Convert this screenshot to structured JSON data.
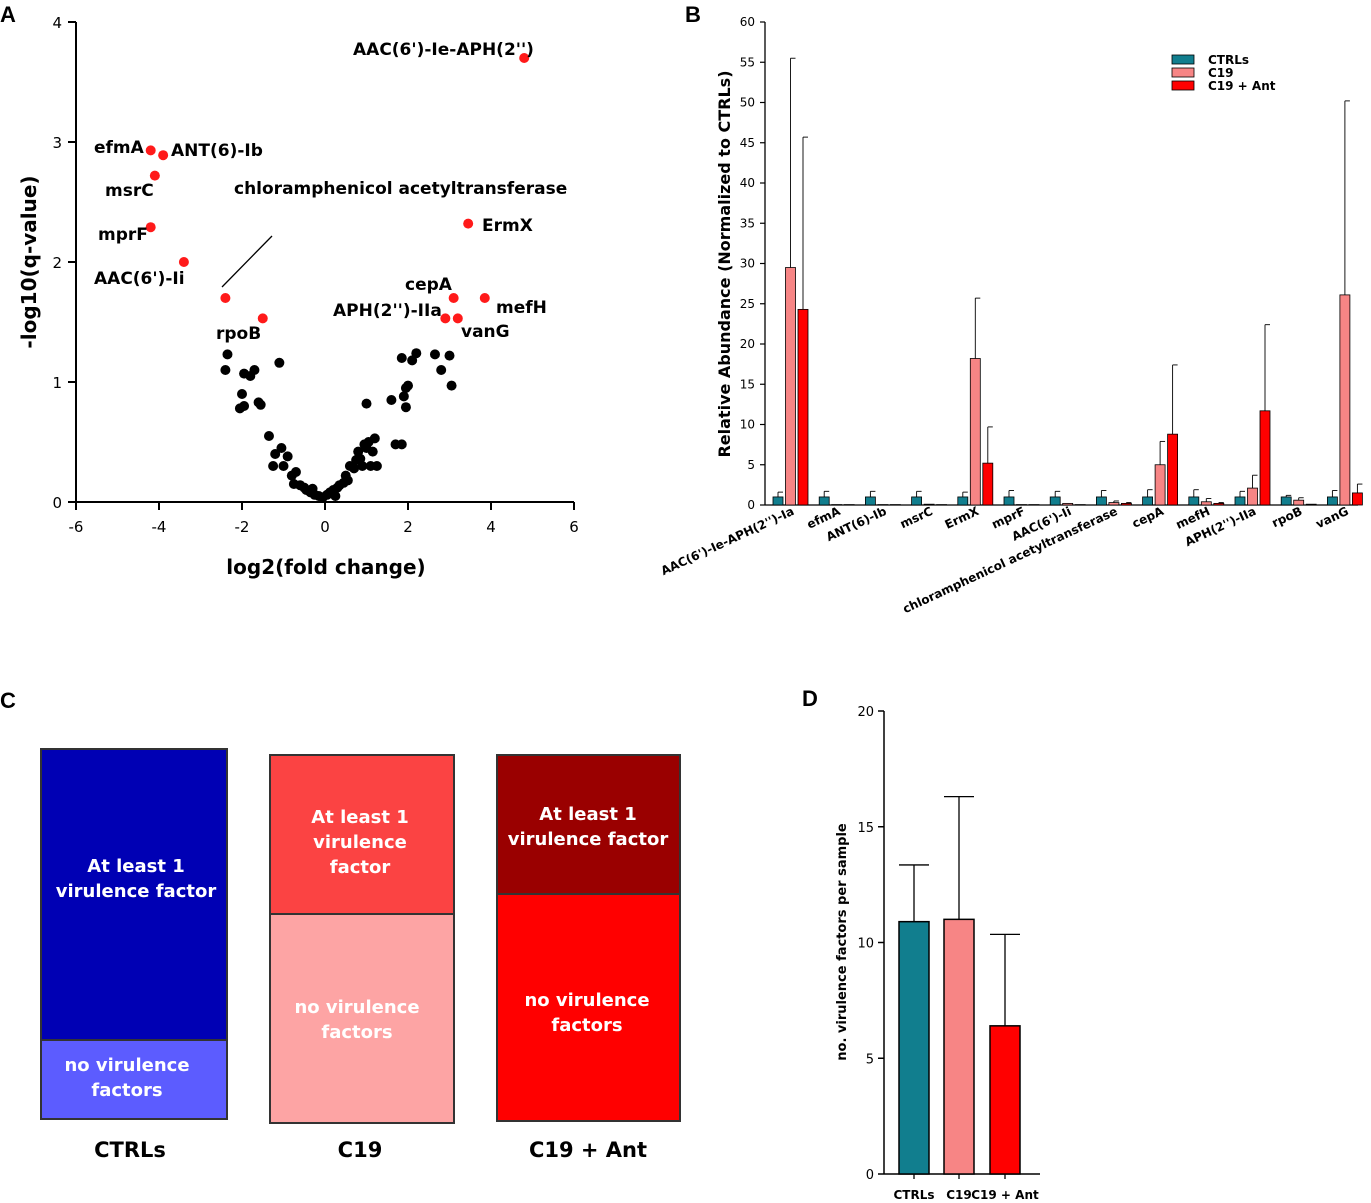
{
  "panels": {
    "a": "A",
    "b": "B",
    "c": "C",
    "d": "D"
  },
  "colors": {
    "ctrl": "#117e8e",
    "c19": "#f78585",
    "ant": "#ff0000",
    "sig": "#ff1a1a",
    "ns": "#000000",
    "c_ctrl_top": "#0000b4",
    "c_ctrl_bot": "#5c5cff",
    "c_c19_top": "#fb4343",
    "c_c19_bot": "#fda4a4",
    "c_ant_top": "#9a0000",
    "c_ant_bot": "#ff0000"
  },
  "chart_data": [
    {
      "type": "scatter",
      "panel": "A",
      "xlabel": "log2(fold change)",
      "ylabel": "-log10(q-value)",
      "xlim": [
        -6,
        6
      ],
      "ylim": [
        0,
        4
      ],
      "xticks": [
        "-6",
        "-4",
        "-2",
        "0",
        "2",
        "4",
        "6"
      ],
      "yticks": [
        "0",
        "1",
        "2",
        "3",
        "4"
      ],
      "significant": [
        {
          "label": "AAC(6')-Ie-APH(2'')",
          "x": 4.8,
          "y": 3.7
        },
        {
          "label": "efmA",
          "x": -4.2,
          "y": 2.93
        },
        {
          "label": "ANT(6)-Ib",
          "x": -3.9,
          "y": 2.89
        },
        {
          "label": "msrC",
          "x": -4.1,
          "y": 2.72
        },
        {
          "label": "mprF",
          "x": -4.2,
          "y": 2.29
        },
        {
          "label": "AAC(6')-Ii",
          "x": -3.4,
          "y": 2.0
        },
        {
          "label": "chloramphenicol acetyltransferase",
          "x": -2.4,
          "y": 1.7
        },
        {
          "label": "rpoB",
          "x": -1.5,
          "y": 1.53
        },
        {
          "label": "ErmX",
          "x": 3.45,
          "y": 2.32
        },
        {
          "label": "cepA",
          "x": 3.1,
          "y": 1.7
        },
        {
          "label": "mefH",
          "x": 3.85,
          "y": 1.7
        },
        {
          "label": "APH(2'')-IIa",
          "x": 2.9,
          "y": 1.53
        },
        {
          "label": "vanG",
          "x": 3.2,
          "y": 1.53
        }
      ],
      "nonsignificant": [
        [
          -2.35,
          1.23
        ],
        [
          -2.4,
          1.1
        ],
        [
          -1.95,
          1.07
        ],
        [
          -1.7,
          1.1
        ],
        [
          -1.8,
          1.05
        ],
        [
          -1.1,
          1.16
        ],
        [
          -2.0,
          0.9
        ],
        [
          -2.05,
          0.78
        ],
        [
          -1.95,
          0.8
        ],
        [
          -1.6,
          0.83
        ],
        [
          -1.55,
          0.81
        ],
        [
          -1.35,
          0.55
        ],
        [
          -1.2,
          0.4
        ],
        [
          -1.05,
          0.45
        ],
        [
          -1.25,
          0.3
        ],
        [
          -0.9,
          0.38
        ],
        [
          -1.0,
          0.3
        ],
        [
          -0.8,
          0.22
        ],
        [
          -0.7,
          0.25
        ],
        [
          -0.75,
          0.15
        ],
        [
          -0.6,
          0.14
        ],
        [
          -0.5,
          0.12
        ],
        [
          -0.45,
          0.1
        ],
        [
          -0.35,
          0.08
        ],
        [
          -0.3,
          0.11
        ],
        [
          -0.25,
          0.06
        ],
        [
          -0.15,
          0.05
        ],
        [
          -0.05,
          0.04
        ],
        [
          0.05,
          0.06
        ],
        [
          0.12,
          0.08
        ],
        [
          0.2,
          0.1
        ],
        [
          0.25,
          0.05
        ],
        [
          0.3,
          0.12
        ],
        [
          0.35,
          0.14
        ],
        [
          0.45,
          0.16
        ],
        [
          0.5,
          0.22
        ],
        [
          0.55,
          0.18
        ],
        [
          0.6,
          0.3
        ],
        [
          0.7,
          0.28
        ],
        [
          0.75,
          0.35
        ],
        [
          0.8,
          0.42
        ],
        [
          0.85,
          0.36
        ],
        [
          0.9,
          0.3
        ],
        [
          1.0,
          0.45
        ],
        [
          1.05,
          0.5
        ],
        [
          1.1,
          0.3
        ],
        [
          1.15,
          0.42
        ],
        [
          1.2,
          0.53
        ],
        [
          1.25,
          0.3
        ],
        [
          0.95,
          0.48
        ],
        [
          1.0,
          0.82
        ],
        [
          1.6,
          0.85
        ],
        [
          1.7,
          0.48
        ],
        [
          1.85,
          0.48
        ],
        [
          1.85,
          1.2
        ],
        [
          2.2,
          1.24
        ],
        [
          1.9,
          0.88
        ],
        [
          1.95,
          0.95
        ],
        [
          1.95,
          0.79
        ],
        [
          2.0,
          0.97
        ],
        [
          2.1,
          1.18
        ],
        [
          2.65,
          1.23
        ],
        [
          2.8,
          1.1
        ],
        [
          3.0,
          1.22
        ],
        [
          3.05,
          0.97
        ]
      ]
    },
    {
      "type": "bar",
      "panel": "B",
      "ylabel": "Relative Abundance (Normalized to CTRLs)",
      "ylim": [
        0,
        60
      ],
      "yticks": [
        "0",
        "5",
        "10",
        "15",
        "20",
        "25",
        "30",
        "35",
        "40",
        "45",
        "50",
        "55",
        "60"
      ],
      "categories": [
        "AAC(6')-Ie-APH(2'')-Ia",
        "efmA",
        "ANT(6)-Ib",
        "msrC",
        "ErmX",
        "mprF",
        "AAC(6')-Ii",
        "chloramphenicol acetyltransferase",
        "cepA",
        "mefH",
        "APH(2'')-IIa",
        "rpoB",
        "vanG"
      ],
      "series": [
        {
          "name": "CTRLs",
          "values": [
            1,
            1,
            1,
            1,
            1,
            1,
            1,
            1,
            1,
            1,
            1,
            1,
            1
          ],
          "errors": [
            0.6,
            0.7,
            0.7,
            0.7,
            0.6,
            0.8,
            0.7,
            0.8,
            0.9,
            0.9,
            0.7,
            0.2,
            0.8
          ]
        },
        {
          "name": "C19",
          "values": [
            29.5,
            0.05,
            0.05,
            0.1,
            18.2,
            0.05,
            0.2,
            0.3,
            5.0,
            0.4,
            2.1,
            0.6,
            26.1
          ],
          "errors": [
            26.0,
            0,
            0,
            0,
            7.5,
            0,
            0,
            0.2,
            2.9,
            0.4,
            1.6,
            0.3,
            24.1
          ]
        },
        {
          "name": "C19 + Ant",
          "values": [
            24.3,
            0.05,
            0.05,
            0.05,
            5.2,
            0.05,
            0.05,
            0.2,
            8.8,
            0.2,
            11.7,
            0.1,
            1.5
          ],
          "errors": [
            21.4,
            0,
            0,
            0,
            4.5,
            0,
            0,
            0.1,
            8.6,
            0.1,
            10.7,
            0,
            1.1
          ]
        }
      ]
    },
    {
      "type": "bar",
      "panel": "C",
      "subtype": "stacked-proportion",
      "categories": [
        "CTRLs",
        "C19",
        "C19 + Ant"
      ],
      "series": [
        {
          "name": "At least 1 virulence factor",
          "values": [
            78.6,
            43.2,
            37.1
          ]
        },
        {
          "name": "no virulence factors",
          "values": [
            21.4,
            56.8,
            62.9
          ]
        }
      ],
      "segment_labels": {
        "top": [
          "At least 1|virulence factor",
          "At least 1|virulence|factor",
          "At least 1|virulence factor"
        ],
        "bottom": [
          "no virulence|factors",
          "no virulence|factors",
          "no virulence|factors"
        ]
      }
    },
    {
      "type": "bar",
      "panel": "D",
      "ylabel": "no. virulence factors per sample",
      "ylim": [
        0,
        20
      ],
      "yticks": [
        "0",
        "5",
        "10",
        "15",
        "20"
      ],
      "categories": [
        "CTRLs",
        "C19",
        "C19 + Ant"
      ],
      "values": [
        10.9,
        11.0,
        6.4
      ],
      "errors": [
        2.45,
        5.3,
        3.95
      ]
    }
  ]
}
